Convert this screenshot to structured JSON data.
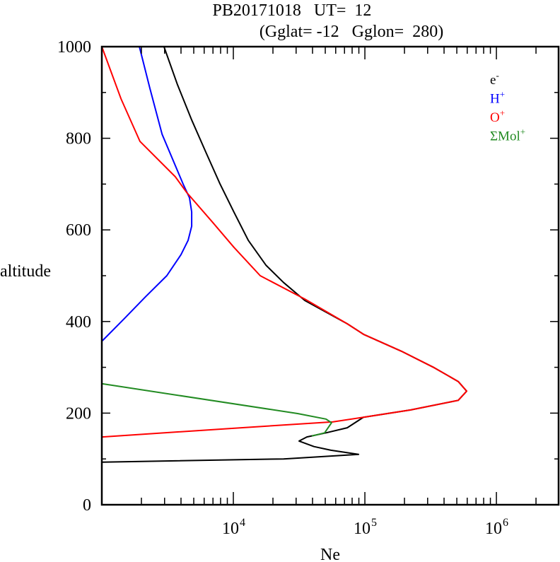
{
  "chart_data": {
    "type": "line",
    "title_line1": "PB20171018   UT=  12",
    "title_line2": "(Gglat= -12   Gglon=  280)",
    "xlabel": "Ne",
    "ylabel": "altitude",
    "xscale": "log",
    "xlim": [
      1000,
      2970000
    ],
    "ylim": [
      0,
      1000
    ],
    "x_tick_labels": [
      {
        "value": 10000,
        "base": "10",
        "exp": "4"
      },
      {
        "value": 100000,
        "base": "10",
        "exp": "5"
      },
      {
        "value": 1000000,
        "base": "10",
        "exp": "6"
      }
    ],
    "y_ticks": [
      0,
      200,
      400,
      600,
      800,
      1000
    ],
    "y_tick_labels": [
      "0",
      "200",
      "400",
      "600",
      "800",
      "1000"
    ],
    "y_minor_ticks": [
      100,
      300,
      500,
      700,
      900
    ],
    "grid": false,
    "legend_position": "top-right",
    "series": [
      {
        "name": "e-",
        "label_base": "e",
        "label_sup": "-",
        "color": "#000000",
        "points": [
          [
            2970,
            1000
          ],
          [
            3760,
            917
          ],
          [
            4820,
            840
          ],
          [
            6170,
            770
          ],
          [
            7900,
            701
          ],
          [
            10100,
            639
          ],
          [
            13000,
            577
          ],
          [
            17700,
            523
          ],
          [
            24100,
            485
          ],
          [
            34900,
            446
          ],
          [
            73400,
            395
          ],
          [
            97600,
            372
          ],
          [
            190000,
            335
          ],
          [
            337000,
            299
          ],
          [
            513000,
            269
          ],
          [
            594000,
            248
          ],
          [
            513000,
            228
          ],
          [
            223000,
            207
          ],
          [
            97600,
            191
          ],
          [
            73400,
            168
          ],
          [
            50600,
            157
          ],
          [
            36200,
            148
          ],
          [
            31600,
            139
          ],
          [
            41000,
            127
          ],
          [
            55200,
            119
          ],
          [
            89500,
            110
          ],
          [
            24100,
            100
          ],
          [
            1010,
            93
          ]
        ]
      },
      {
        "name": "H+",
        "label_base": "H",
        "label_sup": "+",
        "color": "#0000ff",
        "points": [
          [
            1930,
            1000
          ],
          [
            2320,
            909
          ],
          [
            2870,
            809
          ],
          [
            4150,
            700
          ],
          [
            4640,
            670
          ],
          [
            4820,
            639
          ],
          [
            4820,
            608
          ],
          [
            4530,
            577
          ],
          [
            4000,
            546
          ],
          [
            3120,
            500
          ],
          [
            2150,
            454
          ],
          [
            1490,
            407
          ],
          [
            1010,
            358
          ]
        ]
      },
      {
        "name": "O+",
        "label_base": "O",
        "label_sup": "+",
        "color": "#ff0000",
        "points": [
          [
            1000,
            1000
          ],
          [
            1400,
            886
          ],
          [
            1950,
            793
          ],
          [
            3620,
            716
          ],
          [
            4410,
            682
          ],
          [
            6980,
            616
          ],
          [
            10100,
            562
          ],
          [
            16000,
            500
          ],
          [
            34900,
            449
          ],
          [
            73400,
            395
          ],
          [
            97600,
            372
          ],
          [
            190000,
            335
          ],
          [
            337000,
            299
          ],
          [
            513000,
            269
          ],
          [
            594000,
            248
          ],
          [
            513000,
            228
          ],
          [
            223000,
            207
          ],
          [
            97600,
            191
          ],
          [
            57300,
            181
          ],
          [
            11500,
            168
          ],
          [
            1010,
            148
          ]
        ]
      },
      {
        "name": "ΣMol+",
        "label_base": "ΣMol",
        "label_sup": "+",
        "color": "#228b22",
        "points": [
          [
            1010,
            264
          ],
          [
            30800,
            199
          ],
          [
            50600,
            187
          ],
          [
            55800,
            179
          ],
          [
            49400,
            157
          ],
          [
            39500,
            150
          ]
        ]
      }
    ]
  }
}
